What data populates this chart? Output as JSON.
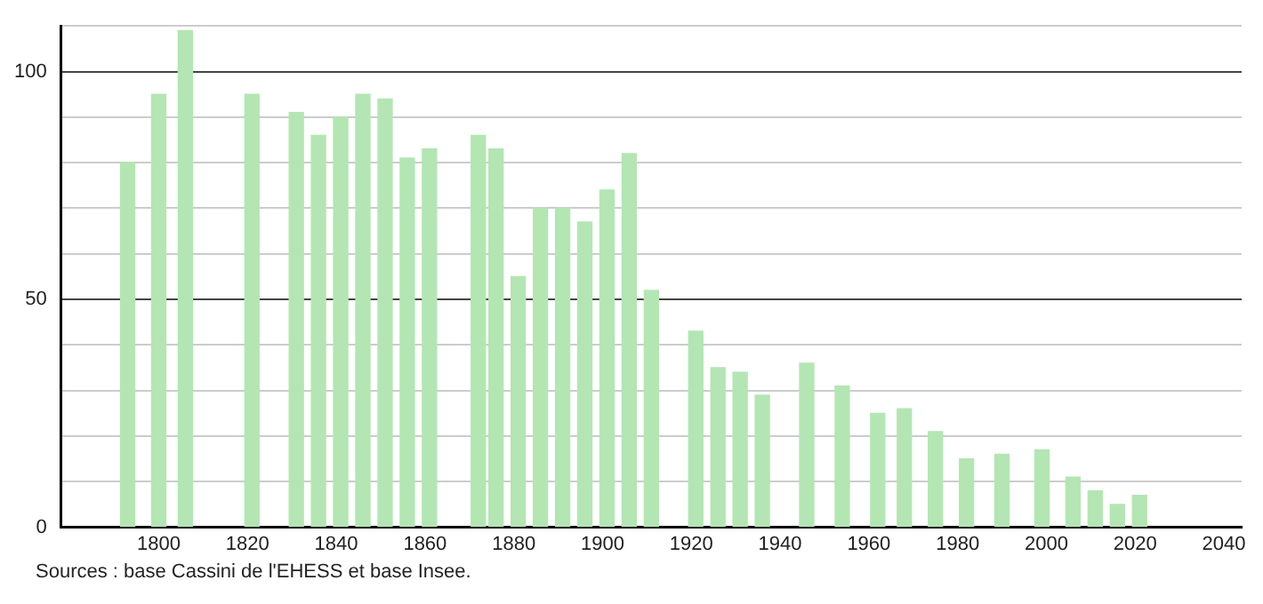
{
  "chart_data": {
    "type": "bar",
    "x": [
      1793,
      1800,
      1806,
      1821,
      1831,
      1836,
      1841,
      1846,
      1851,
      1856,
      1861,
      1872,
      1876,
      1881,
      1886,
      1891,
      1896,
      1901,
      1906,
      1911,
      1921,
      1926,
      1931,
      1936,
      1946,
      1954,
      1962,
      1968,
      1975,
      1982,
      1990,
      1999,
      2006,
      2011,
      2016,
      2021
    ],
    "values": [
      80,
      95,
      109,
      95,
      91,
      86,
      90,
      95,
      94,
      81,
      83,
      86,
      83,
      55,
      70,
      70,
      67,
      74,
      82,
      52,
      43,
      35,
      34,
      29,
      36,
      31,
      25,
      26,
      21,
      15,
      16,
      17,
      11,
      8,
      5,
      7
    ],
    "color": "#b3e6b3",
    "xlim": [
      1778,
      2044
    ],
    "xticks": [
      1800,
      1820,
      1840,
      1860,
      1880,
      1900,
      1920,
      1940,
      1960,
      1980,
      2000,
      2020,
      2040
    ],
    "ylim": [
      0,
      110
    ],
    "yticks": [
      0,
      {
        "value": 10,
        "label": null
      },
      {
        "value": 20,
        "label": null
      },
      {
        "value": 30,
        "label": null
      },
      {
        "value": 40,
        "label": null
      },
      50,
      {
        "value": 60,
        "label": null
      },
      {
        "value": 70,
        "label": null
      },
      {
        "value": 80,
        "label": null
      },
      {
        "value": 90,
        "label": null
      },
      100,
      {
        "value": 110,
        "label": null
      }
    ],
    "grid": "y",
    "legend": false,
    "annotations": [
      "Sources : base Cassini de l'EHESS et base Insee."
    ]
  }
}
